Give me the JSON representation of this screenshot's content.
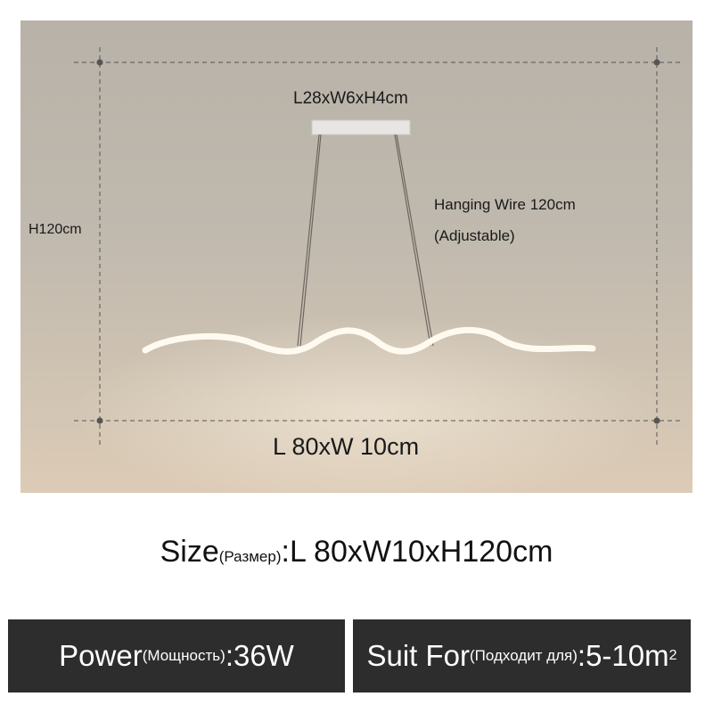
{
  "diagram": {
    "canopy_size": "L28xW6xH4cm",
    "hanging_wire": "Hanging Wire 120cm",
    "adjustable": "(Adjustable)",
    "height": "H120cm",
    "lamp_size": "L 80xW 10cm"
  },
  "size": {
    "label": "Size",
    "label_ru": "(Размер)",
    "value": ":L 80xW10xH120cm"
  },
  "power": {
    "label": "Power",
    "label_ru": "(Мощность)",
    "value": ":36W"
  },
  "suit_for": {
    "label": "Suit For",
    "label_ru": "(Подходит для)",
    "value": ":5-10m",
    "unit_sup": "2"
  },
  "colors": {
    "box_bg": "#2d2d2d",
    "dimension_line": "#555555"
  }
}
